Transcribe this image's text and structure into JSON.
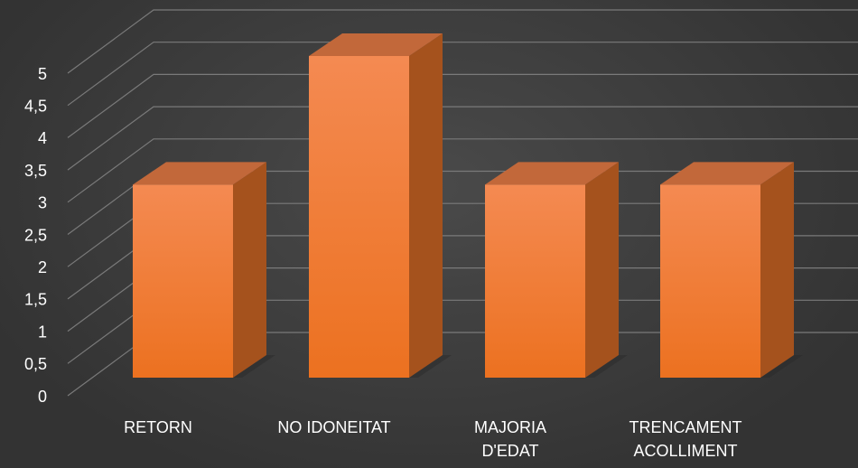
{
  "chart_data": {
    "type": "bar3d",
    "categories": [
      "RETORN",
      "NO IDONEITAT",
      "MAJORIA D'EDAT",
      "TRENCAMENT ACOLLIMENT"
    ],
    "values": [
      3,
      5,
      3,
      3
    ],
    "color": "#f0792c",
    "ylim": [
      0,
      5
    ],
    "yticks": [
      0,
      {
        "value": 0.5,
        "label": "0,5"
      },
      1,
      {
        "value": 1.5,
        "label": "1,5"
      },
      2,
      {
        "value": 2.5,
        "label": "2,5"
      },
      3,
      {
        "value": 3.5,
        "label": "3,5"
      },
      4,
      {
        "value": 4.5,
        "label": "4,5"
      },
      5
    ],
    "grid": true
  }
}
